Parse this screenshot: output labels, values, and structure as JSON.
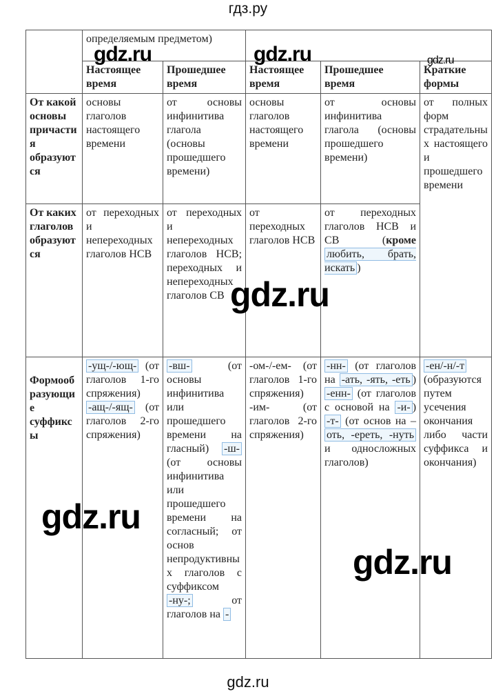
{
  "watermarks": {
    "top": "гдз.ру",
    "bottom": "gdz.ru",
    "overlay": "gdz.ru"
  },
  "colors": {
    "highlight_bg": "#eef6fc",
    "highlight_border": "#8fbbe3"
  },
  "table": {
    "top_row": {
      "merged_text": "определяемым предметом)"
    },
    "headers": [
      "Настоящее время",
      "Прошедшее время",
      "Настоящее время",
      "Прошедшее время",
      "Краткие формы"
    ],
    "rows": [
      {
        "label": "От какой основы причастия образуются",
        "cells": [
          [
            {
              "t": "основы глаголов настоящего времени"
            }
          ],
          [
            {
              "t": "от основы инфинитива глагола (основы прошедшего времени)"
            }
          ],
          [
            {
              "t": "основы глаголов настоящего времени"
            }
          ],
          [
            {
              "t": "от основы инфинитива глагола (основы прошедшего времени)"
            }
          ],
          [
            {
              "t": "от полных форм страдательных настоящего и прошедшего времени"
            }
          ]
        ]
      },
      {
        "label": "От каких глаголов образуются",
        "cells": [
          [
            {
              "t": "от переходных и непереходных глаголов НСВ"
            }
          ],
          [
            {
              "t": "от переходных и непереходных глаголов НСВ; переходных и непереходных глаголов СВ"
            }
          ],
          [
            {
              "t": "от переходных глаголов НСВ"
            }
          ],
          [
            {
              "t": "от переходных глаголов НСВ и СВ ("
            },
            {
              "t": "кроме",
              "b": true
            },
            {
              "t": " "
            },
            {
              "t": "любить, брать, искать",
              "hl": true
            },
            {
              "t": ")"
            }
          ]
        ]
      },
      {
        "label": "Формообразующие суффиксы",
        "cells": [
          [
            {
              "t": "-ущ-/-ющ-",
              "hl": true
            },
            {
              "t": " (от глаголов 1-го спряжения) "
            },
            {
              "t": "-ащ-/-ящ-",
              "hl": true
            },
            {
              "t": " (от глаголов 2-го спряжения)"
            }
          ],
          [
            {
              "t": "-вш-",
              "hl": true
            },
            {
              "t": " (от основы инфинитива или прошедшего времени на гласный) "
            },
            {
              "t": "-ш-",
              "hl": true
            },
            {
              "t": " (от основы инфинитива или прошедшего времени на согласный; от основ непродуктивных глаголов с суффиксом "
            },
            {
              "t": "-ну-;",
              "hl": true
            },
            {
              "t": " от глаголов на "
            },
            {
              "t": "-",
              "hl": true
            }
          ],
          [
            {
              "t": "-ом-/-ем- (от глаголов 1-го спряжения) -им- (от глаголов 2-го спряжения)"
            }
          ],
          [
            {
              "t": "-нн-",
              "hl": true
            },
            {
              "t": " (от глаголов на "
            },
            {
              "t": "-ать, -ять, -еть",
              "hl": true
            },
            {
              "t": ") "
            },
            {
              "t": "-енн-",
              "hl": true
            },
            {
              "t": " (от глаголов с основой на "
            },
            {
              "t": "-и-",
              "hl": true
            },
            {
              "t": ") "
            },
            {
              "t": "-т-",
              "hl": true
            },
            {
              "t": " (от основ на –"
            },
            {
              "t": "оть, -ереть, -нуть",
              "hl": true
            },
            {
              "t": " и односложных глаголов)"
            }
          ],
          [
            {
              "t": "-ен/-н/-т",
              "hl": true
            },
            {
              "t": " (образуются путем усечения окончания либо части суффикса и окончания)"
            }
          ]
        ]
      }
    ]
  }
}
